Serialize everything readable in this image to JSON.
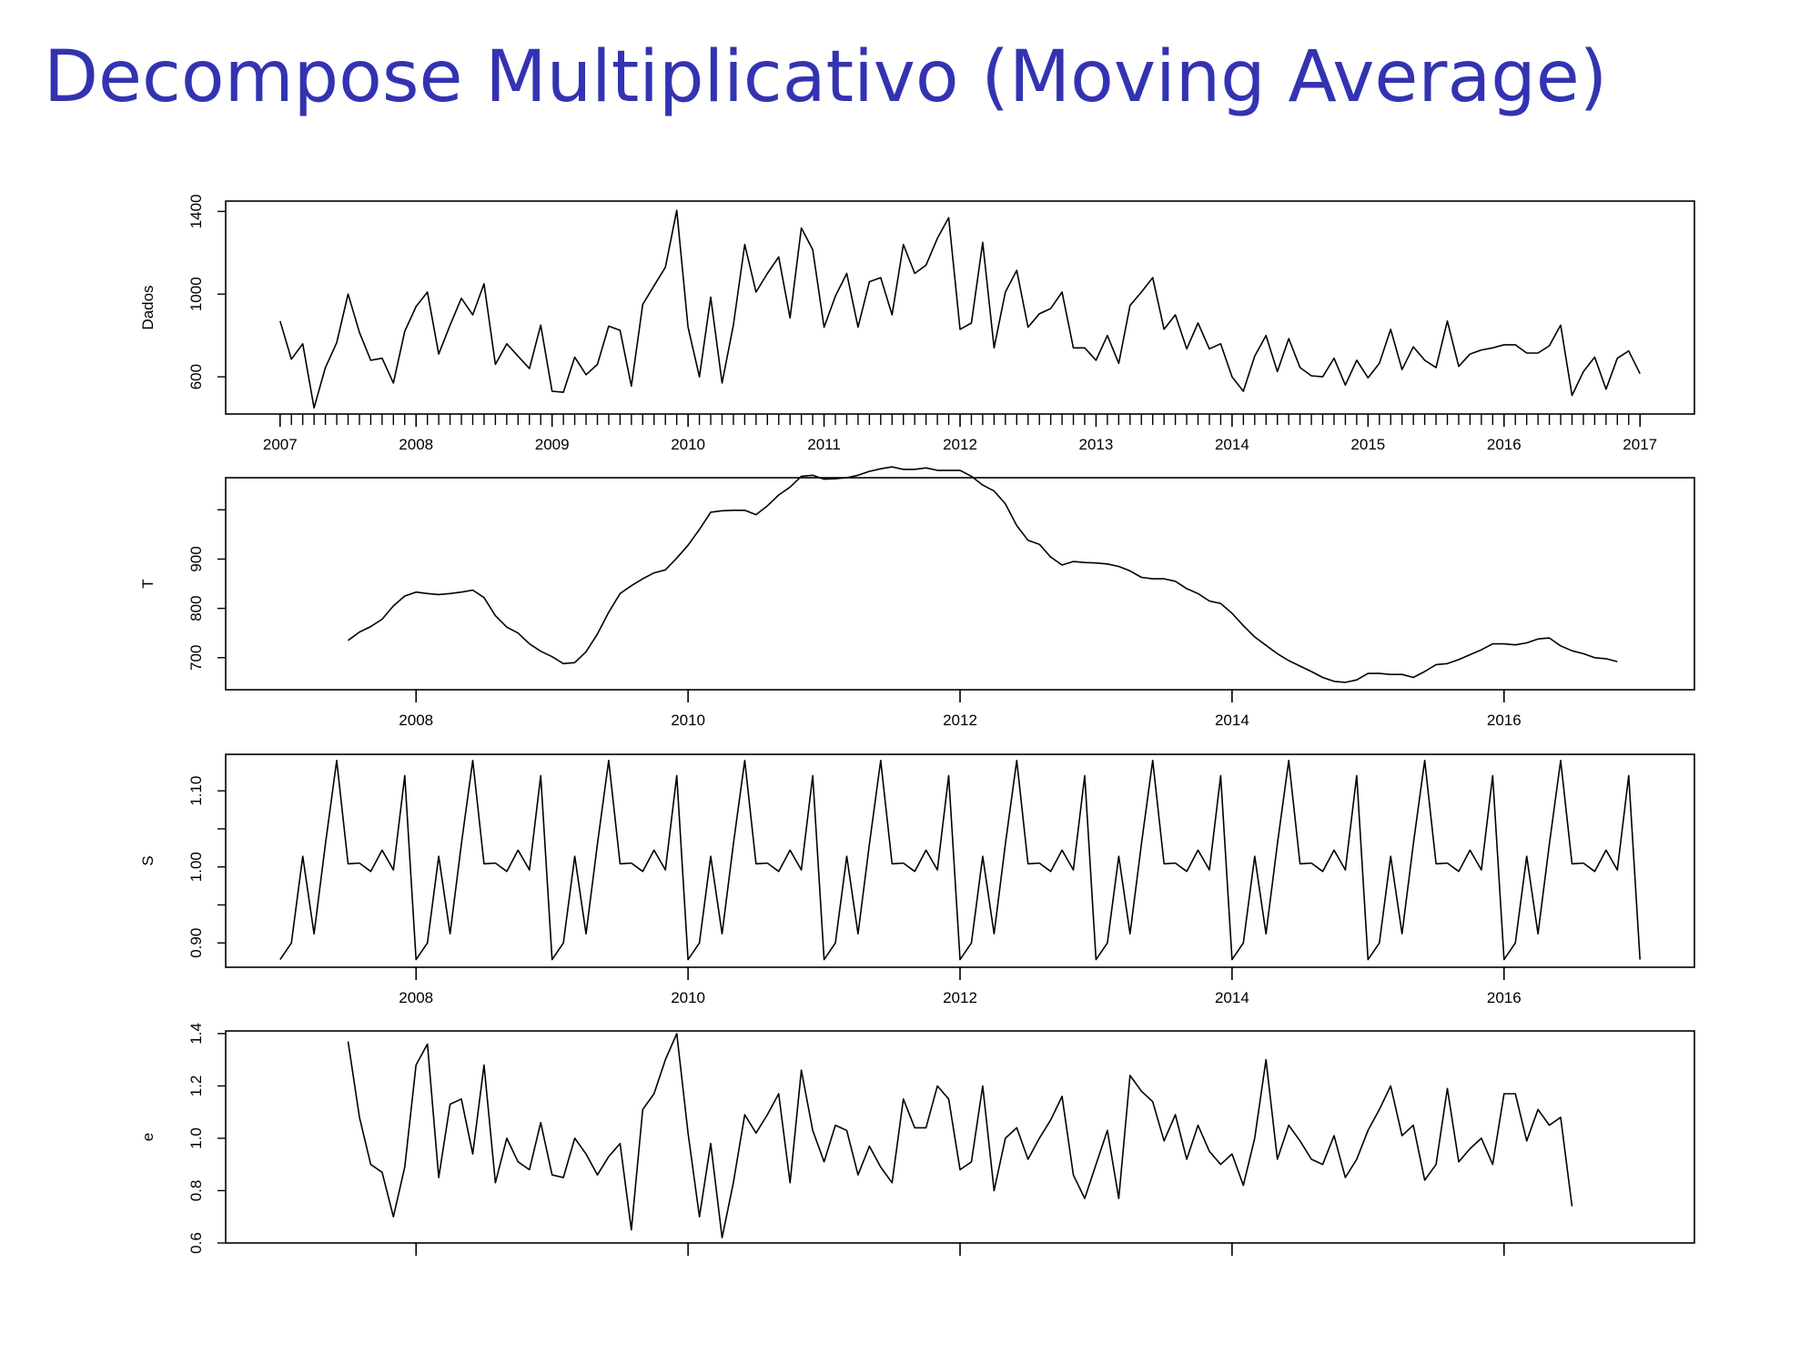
{
  "title": "Decompose Multiplicativo (Moving Average)",
  "colors": {
    "title": "#3333b2",
    "line": "#000000",
    "background": "#ffffff"
  },
  "chart_data": [
    {
      "type": "line",
      "ylabel": "Dados",
      "ylim": [
        420,
        1450
      ],
      "yticks": [
        600,
        1000,
        1400
      ],
      "xlim": [
        2006.6,
        2017.4
      ],
      "xticks": [
        2007,
        2008,
        2009,
        2010,
        2011,
        2012,
        2013,
        2014,
        2015,
        2016,
        2017
      ],
      "x_minor_ticks": "monthly",
      "x_start": 2007.0,
      "x_step": 0.0833333,
      "values": [
        870,
        685,
        760,
        450,
        645,
        765,
        1000,
        815,
        680,
        690,
        570,
        820,
        940,
        1010,
        710,
        850,
        980,
        900,
        1050,
        660,
        760,
        700,
        640,
        850,
        530,
        525,
        695,
        610,
        660,
        845,
        825,
        555,
        950,
        1040,
        1130,
        1405,
        840,
        600,
        985,
        570,
        850,
        1240,
        1010,
        1100,
        1180,
        885,
        1320,
        1215,
        840,
        990,
        1100,
        840,
        1060,
        1080,
        900,
        1240,
        1100,
        1140,
        1270,
        1370,
        830,
        860,
        1250,
        740,
        1010,
        1115,
        840,
        905,
        930,
        1010,
        740,
        740,
        680,
        800,
        665,
        945,
        1010,
        1080,
        830,
        900,
        735,
        860,
        735,
        760,
        600,
        530,
        700,
        800,
        625,
        785,
        645,
        605,
        600,
        690,
        560,
        680,
        595,
        665,
        830,
        635,
        745,
        680,
        645,
        870,
        650,
        710,
        730,
        740,
        755,
        755,
        715,
        715,
        750,
        850,
        510,
        625,
        695,
        540,
        690,
        725,
        615
      ]
    },
    {
      "type": "line",
      "ylabel": "T",
      "ylim": [
        635,
        1065
      ],
      "yticks": [
        700,
        800,
        900
      ],
      "xlim": [
        2006.6,
        2017.4
      ],
      "xticks": [
        2008,
        2010,
        2012,
        2014,
        2016
      ],
      "x_start": 2007.5,
      "x_step": 0.0833333,
      "values": [
        735,
        752,
        763,
        778,
        805,
        825,
        833,
        830,
        828,
        830,
        833,
        837,
        822,
        785,
        762,
        750,
        728,
        713,
        702,
        688,
        690,
        712,
        748,
        792,
        830,
        846,
        860,
        872,
        878,
        902,
        928,
        960,
        995,
        998,
        999,
        999,
        990,
        1008,
        1030,
        1046,
        1068,
        1070,
        1062,
        1063,
        1065,
        1070,
        1078,
        1083,
        1087,
        1082,
        1082,
        1085,
        1080,
        1080,
        1080,
        1068,
        1050,
        1038,
        1012,
        968,
        938,
        930,
        904,
        888,
        895,
        893,
        892,
        890,
        885,
        876,
        863,
        860,
        860,
        855,
        840,
        830,
        815,
        810,
        790,
        765,
        742,
        725,
        708,
        694,
        683,
        672,
        660,
        652,
        650,
        655,
        668,
        668,
        666,
        666,
        660,
        672,
        686,
        688,
        696,
        706,
        716,
        728,
        728,
        726,
        730,
        738,
        740,
        724,
        714,
        708,
        700,
        698,
        692
      ]
    },
    {
      "type": "line",
      "ylabel": "S",
      "ylim": [
        0.868,
        1.148
      ],
      "yticks": [
        0.9,
        1.0,
        1.1
      ],
      "ytick_labels": [
        "0.90",
        "1.00",
        "1.10"
      ],
      "xlim": [
        2006.6,
        2017.4
      ],
      "xticks": [
        2008,
        2010,
        2012,
        2014,
        2016
      ],
      "x_start": 2007.0,
      "x_step": 0.0833333,
      "season": [
        0.878,
        0.9,
        1.014,
        0.912,
        1.03,
        1.14,
        1.004,
        1.005,
        0.994,
        1.022,
        0.996,
        1.12
      ],
      "values_note": "season repeats every year from 2007 through the first month of 2017"
    },
    {
      "type": "line",
      "ylabel": "e",
      "ylim": [
        0.6,
        1.41
      ],
      "yticks": [
        0.6,
        0.8,
        1.0,
        1.2,
        1.4
      ],
      "ytick_labels": [
        "0.6",
        "0.8",
        "1.0",
        "1.2",
        "1.4"
      ],
      "xlim": [
        2006.6,
        2017.4
      ],
      "xticks": [
        2008,
        2010,
        2012,
        2014,
        2016
      ],
      "show_xtick_labels": false,
      "x_start": 2007.5,
      "x_step": 0.0833333,
      "values": [
        1.37,
        1.08,
        0.9,
        0.87,
        0.7,
        0.89,
        1.28,
        1.36,
        0.85,
        1.13,
        1.15,
        0.94,
        1.28,
        0.83,
        1.0,
        0.91,
        0.88,
        1.06,
        0.86,
        0.85,
        1.0,
        0.94,
        0.86,
        0.93,
        0.98,
        0.65,
        1.11,
        1.17,
        1.3,
        1.4,
        1.02,
        0.7,
        0.98,
        0.62,
        0.83,
        1.09,
        1.02,
        1.09,
        1.17,
        0.83,
        1.26,
        1.03,
        0.91,
        1.05,
        1.03,
        0.86,
        0.97,
        0.89,
        0.83,
        1.15,
        1.04,
        1.04,
        1.2,
        1.15,
        0.88,
        0.91,
        1.2,
        0.8,
        1.0,
        1.04,
        0.92,
        1.0,
        1.07,
        1.16,
        0.86,
        0.77,
        0.9,
        1.03,
        0.77,
        1.24,
        1.18,
        1.14,
        0.99,
        1.09,
        0.92,
        1.05,
        0.95,
        0.9,
        0.94,
        0.82,
        1.0,
        1.3,
        0.92,
        1.05,
        0.99,
        0.92,
        0.9,
        1.01,
        0.85,
        0.92,
        1.03,
        1.11,
        1.2,
        1.01,
        1.05,
        0.84,
        0.9,
        1.19,
        0.91,
        0.96,
        1.0,
        0.9,
        1.17,
        1.17,
        0.99,
        1.11,
        1.05,
        1.08,
        0.74
      ]
    }
  ]
}
